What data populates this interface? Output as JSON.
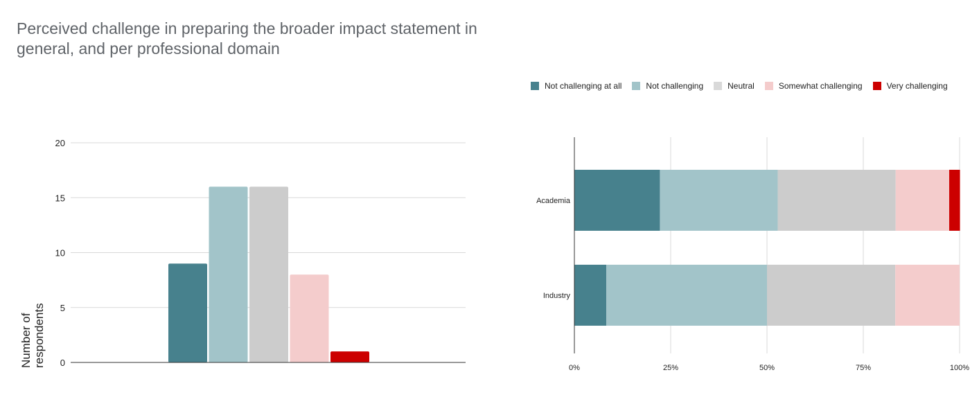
{
  "title": "Perceived challenge in preparing the broader impact statement in general, and per professional domain",
  "colors": {
    "Not challenging at all": "#47818d",
    "Not challenging": "#a2c4c9",
    "Neutral": "#cccccc",
    "Somewhat challenging": "#f4cccc",
    "Very challenging": "#cc0000"
  },
  "legend": [
    {
      "label": "Not challenging at all",
      "color": "#47818d"
    },
    {
      "label": "Not challenging",
      "color": "#a2c4c9"
    },
    {
      "label": "Neutral",
      "color": "#d9d9d9"
    },
    {
      "label": "Somewhat challenging",
      "color": "#f4cccc"
    },
    {
      "label": "Very challenging",
      "color": "#cc0000"
    }
  ],
  "chart_data": [
    {
      "type": "bar",
      "title": "",
      "xlabel": "",
      "ylabel": "Number of respondents",
      "ylim": [
        0,
        20
      ],
      "yticks": [
        0,
        5,
        10,
        15,
        20
      ],
      "grid": true,
      "categories": [
        "Not challenging at all",
        "Not challenging",
        "Neutral",
        "Somewhat challenging",
        "Very challenging"
      ],
      "values": [
        9,
        16,
        16,
        8,
        1
      ],
      "colors": [
        "#47818d",
        "#a2c4c9",
        "#cccccc",
        "#f4cccc",
        "#cc0000"
      ]
    },
    {
      "type": "bar",
      "orientation": "horizontal",
      "stacked": "percent",
      "categories": [
        "Academia",
        "Industry"
      ],
      "xlim": [
        0,
        100
      ],
      "xticks": [
        "0%",
        "25%",
        "50%",
        "75%",
        "100%"
      ],
      "grid": true,
      "legend_position": "top",
      "series": [
        {
          "name": "Not challenging at all",
          "values": [
            22.2,
            8.3
          ]
        },
        {
          "name": "Not challenging",
          "values": [
            30.6,
            41.7
          ]
        },
        {
          "name": "Neutral",
          "values": [
            30.6,
            33.3
          ]
        },
        {
          "name": "Somewhat challenging",
          "values": [
            13.9,
            16.7
          ]
        },
        {
          "name": "Very challenging",
          "values": [
            2.8,
            0
          ]
        }
      ]
    }
  ]
}
